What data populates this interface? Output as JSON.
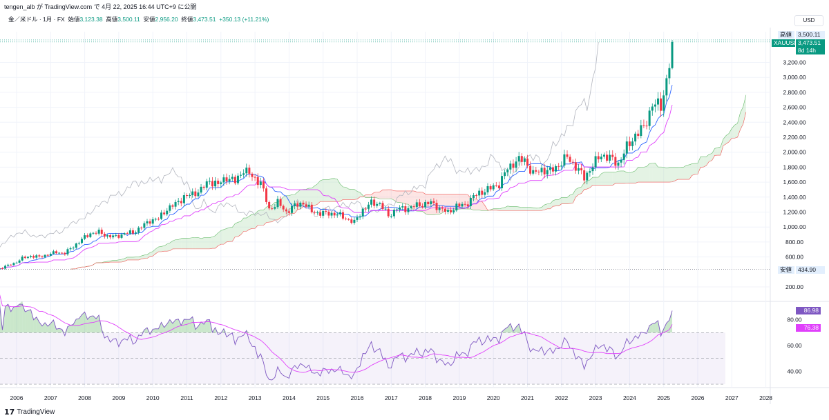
{
  "header": {
    "published": "tengen_alb が TradingView.com で 4月 22, 2025 16:44 UTC+9 に公開",
    "currency": "USD"
  },
  "legend": {
    "symbol": "金／米ドル · 1月 · FX",
    "open_label": "始値",
    "open": "3,123.38",
    "high_label": "高値",
    "high": "3,500.11",
    "low_label": "安値",
    "low": "2,956.20",
    "close_label": "終値",
    "close": "3,473.51",
    "change": "+350.13 (+11.21%)"
  },
  "markers": {
    "high_label": "高値",
    "high_value": "3,500.11",
    "symbol": "XAUUSD",
    "last_value": "3,473.51",
    "countdown": "8d 14h",
    "low_label": "安値",
    "low_value": "434.90",
    "rsi_value": "86.98",
    "rsi_ma_value": "76.38"
  },
  "colors": {
    "up": "#089981",
    "down": "#f23645",
    "tenkan": "#2962ff",
    "kijun": "#e040fb",
    "lagging": "#b2b5be",
    "cloud_up": "#a5d6a7",
    "cloud_down": "#f7a9a7",
    "rsi": "#7e57c2",
    "rsi_ma": "#e040fb"
  },
  "footer": {
    "brand": "TradingView"
  },
  "chart_data": {
    "type": "candlestick",
    "title": "金／米ドル · 1月 · FX",
    "frequency": "monthly",
    "start": "2005-06",
    "quarterly_close": [
      435,
      473,
      513,
      582,
      614,
      599,
      632,
      662,
      650,
      742,
      834,
      917,
      930,
      880,
      870,
      916,
      926,
      1001,
      1087,
      1113,
      1242,
      1307,
      1405,
      1439,
      1500,
      1620,
      1565,
      1668,
      1604,
      1772,
      1675,
      1595,
      1234,
      1326,
      1202,
      1284,
      1327,
      1210,
      1184,
      1183,
      1172,
      1115,
      1061,
      1233,
      1321,
      1315,
      1146,
      1249,
      1242,
      1280,
      1302,
      1325,
      1253,
      1192,
      1281,
      1292,
      1409,
      1472,
      1517,
      1577,
      1781,
      1886,
      1895,
      1707,
      1770,
      1743,
      1829,
      1937,
      1807,
      1661,
      1824,
      1969,
      1919,
      1849,
      2063,
      2230,
      2327,
      2634,
      2624,
      3124
    ],
    "last_month_close": 3473.51,
    "y_ticks": [
      "3,200.00",
      "3,000.00",
      "2,800.00",
      "2,600.00",
      "2,400.00",
      "2,200.00",
      "2,000.00",
      "1,800.00",
      "1,600.00",
      "1,400.00",
      "1,200.00",
      "1,000.00",
      "800.00",
      "600.00",
      "200.00"
    ],
    "y_tick_values": [
      3200,
      3000,
      2800,
      2600,
      2400,
      2200,
      2000,
      1800,
      1600,
      1400,
      1200,
      1000,
      800,
      600,
      200
    ],
    "ylim": [
      200,
      3500
    ],
    "x_ticks": [
      "2006",
      "2007",
      "2008",
      "2009",
      "2010",
      "2011",
      "2012",
      "2013",
      "2014",
      "2015",
      "2016",
      "2017",
      "2018",
      "2019",
      "2020",
      "2021",
      "2022",
      "2023",
      "2024",
      "2025",
      "2026",
      "2027",
      "2028"
    ],
    "indicators": [
      "Ichimoku Cloud",
      "RSI 14"
    ],
    "rsi": {
      "ticks": [
        "80.00",
        "60.00",
        "40.00"
      ],
      "tick_values": [
        80,
        60,
        40
      ],
      "upper": 70,
      "lower": 30,
      "mid": 50,
      "last": 86.98,
      "ma_last": 76.38
    }
  }
}
